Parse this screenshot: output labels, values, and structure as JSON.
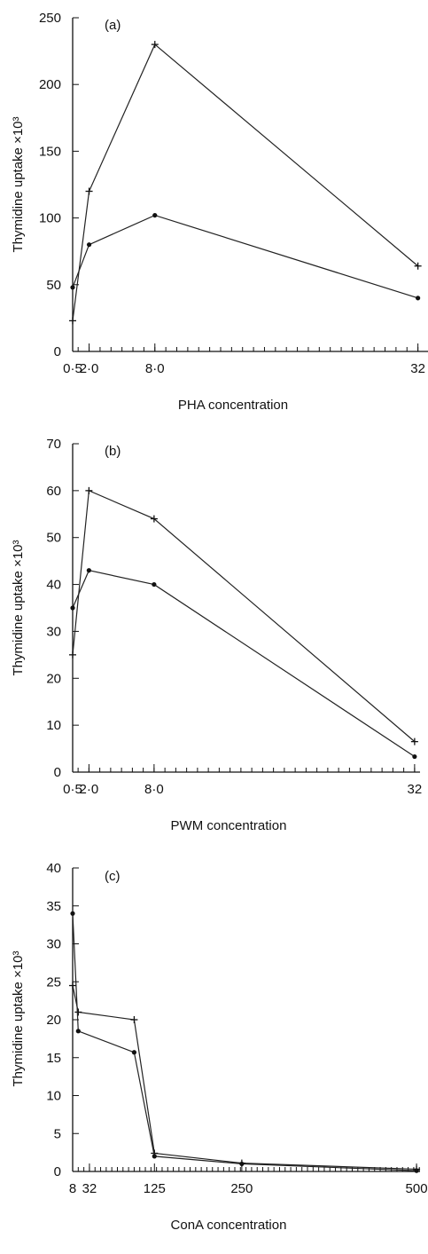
{
  "chart_data": [
    {
      "type": "line",
      "panel_label": "(a)",
      "xlabel": "PHA concentration",
      "ylabel": "Thymidine uptake ×10³",
      "x_ticks": [
        "0·5",
        "2·0",
        "8·0",
        "32"
      ],
      "x_tick_values": [
        0.5,
        2,
        8,
        32
      ],
      "xlim": [
        0.5,
        33
      ],
      "y_ticks": [
        0,
        50,
        100,
        150,
        200,
        250
      ],
      "ylim": [
        0,
        250
      ],
      "minor_x_step": 1,
      "series": [
        {
          "marker": "plus",
          "x": [
            0.5,
            2,
            8,
            32
          ],
          "y": [
            23,
            120,
            230,
            64
          ]
        },
        {
          "marker": "dot",
          "x": [
            0.5,
            2,
            8,
            32
          ],
          "y": [
            48,
            80,
            102,
            40
          ]
        }
      ]
    },
    {
      "type": "line",
      "panel_label": "(b)",
      "xlabel": "PWM concentration",
      "ylabel": "Thymidine uptake ×10³",
      "x_ticks": [
        "0·5",
        "2·0",
        "8·0",
        "32"
      ],
      "x_tick_values": [
        0.5,
        2,
        8,
        32
      ],
      "xlim": [
        0.5,
        32.5
      ],
      "y_ticks": [
        0,
        10,
        20,
        30,
        40,
        50,
        60,
        70
      ],
      "ylim": [
        0,
        70
      ],
      "minor_x_step": 1,
      "series": [
        {
          "marker": "plus",
          "x": [
            0.5,
            2,
            8,
            32
          ],
          "y": [
            25,
            60,
            54,
            6.5
          ]
        },
        {
          "marker": "dot",
          "x": [
            0.5,
            2,
            8,
            32
          ],
          "y": [
            35,
            43,
            40,
            3.3
          ]
        }
      ]
    },
    {
      "type": "line",
      "panel_label": "(c)",
      "xlabel": "ConA concentration",
      "ylabel": "Thymidine uptake ×10³",
      "x_ticks": [
        "8",
        "32",
        "125",
        "250",
        "500"
      ],
      "x_tick_values": [
        8,
        32,
        125,
        250,
        500
      ],
      "xlim": [
        8,
        505
      ],
      "y_ticks": [
        0,
        5,
        10,
        15,
        20,
        25,
        30,
        35,
        40
      ],
      "ylim": [
        0,
        40
      ],
      "minor_x_step": 8,
      "series": [
        {
          "marker": "plus",
          "x": [
            8,
            16,
            96,
            125,
            250,
            500
          ],
          "y": [
            24.5,
            21,
            20,
            2.4,
            1.1,
            0.3
          ]
        },
        {
          "marker": "dot",
          "x": [
            8,
            16,
            96,
            125,
            250,
            500
          ],
          "y": [
            34,
            18.5,
            15.7,
            2,
            1,
            0.1
          ]
        }
      ]
    }
  ]
}
